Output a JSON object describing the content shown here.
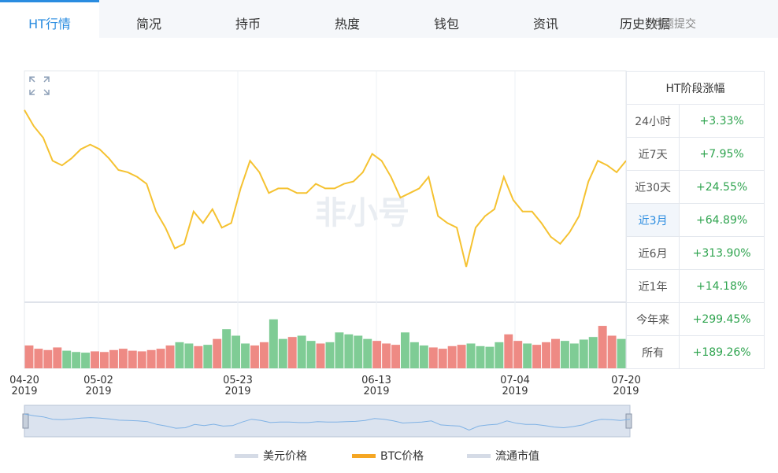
{
  "tabs": [
    "HT行情",
    "简况",
    "持币",
    "热度",
    "钱包",
    "资讯",
    "历史数据",
    "问题提交"
  ],
  "active_tab": 0,
  "watermark": "非小号",
  "chart_data": {
    "type": "line",
    "x_labels": [
      {
        "date": "04-20",
        "year": "2019"
      },
      {
        "date": "05-02",
        "year": "2019"
      },
      {
        "date": "05-23",
        "year": "2019"
      },
      {
        "date": "06-13",
        "year": "2019"
      },
      {
        "date": "07-04",
        "year": "2019"
      },
      {
        "date": "07-20",
        "year": "2019"
      }
    ],
    "series": [
      {
        "name": "BTC价格",
        "color": "#f5c231",
        "ylim": [
          0,
          100
        ],
        "values": [
          83,
          76,
          71,
          61,
          59,
          62,
          66,
          68,
          66,
          62,
          57,
          56,
          54,
          51,
          39,
          32,
          23,
          25,
          39,
          34,
          40,
          32,
          34,
          49,
          61,
          56,
          47,
          49,
          49,
          47,
          47,
          51,
          49,
          49,
          51,
          52,
          56,
          64,
          61,
          54,
          45,
          47,
          49,
          54,
          37,
          34,
          32,
          15,
          32,
          37,
          40,
          54,
          44,
          39,
          39,
          34,
          28,
          25,
          30,
          37,
          52,
          61,
          59,
          56,
          61
        ]
      }
    ],
    "volume": {
      "ylim": [
        0,
        100
      ],
      "up_color": "#7fcc95",
      "down_color": "#ee8a84",
      "values": [
        35,
        30,
        28,
        32,
        27,
        25,
        24,
        26,
        25,
        28,
        30,
        27,
        26,
        28,
        30,
        35,
        40,
        38,
        34,
        36,
        45,
        60,
        50,
        38,
        35,
        40,
        75,
        45,
        48,
        50,
        42,
        38,
        40,
        55,
        52,
        50,
        45,
        42,
        38,
        36,
        55,
        40,
        35,
        32,
        30,
        34,
        36,
        38,
        34,
        33,
        40,
        52,
        42,
        38,
        36,
        40,
        45,
        42,
        38,
        44,
        48,
        65,
        50,
        45
      ]
    },
    "legend": [
      {
        "name": "美元价格",
        "color": "#d5dbe6"
      },
      {
        "name": "BTC价格",
        "color": "#f5a623"
      },
      {
        "name": "流通市值",
        "color": "#d5dbe6"
      }
    ]
  },
  "table": {
    "title": "HT阶段涨幅",
    "highlight": 3,
    "rows": [
      [
        "24小时",
        "+3.33%"
      ],
      [
        "近7天",
        "+7.95%"
      ],
      [
        "近30天",
        "+24.55%"
      ],
      [
        "近3月",
        "+64.89%"
      ],
      [
        "近6月",
        "+313.90%"
      ],
      [
        "近1年",
        "+14.18%"
      ],
      [
        "今年来",
        "+299.45%"
      ],
      [
        "所有",
        "+189.26%"
      ]
    ]
  }
}
